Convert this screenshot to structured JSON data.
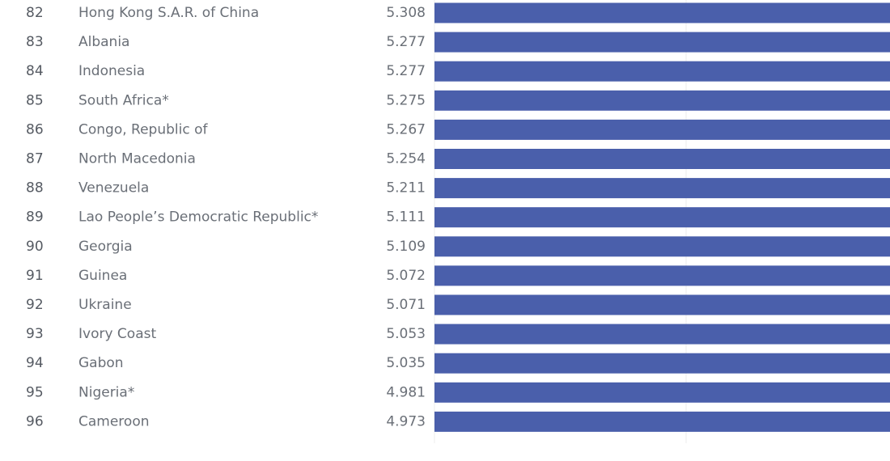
{
  "chart_data": {
    "type": "bar",
    "orientation": "horizontal",
    "bar_color": "#4a5fab",
    "title": "",
    "xlabel": "",
    "ylabel": "",
    "rows": [
      {
        "rank": "82",
        "country": "Hong Kong S.A.R. of China",
        "value": "5.308"
      },
      {
        "rank": "83",
        "country": "Albania",
        "value": "5.277"
      },
      {
        "rank": "84",
        "country": "Indonesia",
        "value": "5.277"
      },
      {
        "rank": "85",
        "country": "South Africa*",
        "value": "5.275"
      },
      {
        "rank": "86",
        "country": "Congo, Republic of",
        "value": "5.267"
      },
      {
        "rank": "87",
        "country": "North Macedonia",
        "value": "5.254"
      },
      {
        "rank": "88",
        "country": "Venezuela",
        "value": "5.211"
      },
      {
        "rank": "89",
        "country": "Lao People’s Democratic Republic*",
        "value": "5.111"
      },
      {
        "rank": "90",
        "country": "Georgia",
        "value": "5.109"
      },
      {
        "rank": "91",
        "country": "Guinea",
        "value": "5.072"
      },
      {
        "rank": "92",
        "country": "Ukraine",
        "value": "5.071"
      },
      {
        "rank": "93",
        "country": "Ivory Coast",
        "value": "5.053"
      },
      {
        "rank": "94",
        "country": "Gabon",
        "value": "5.035"
      },
      {
        "rank": "95",
        "country": "Nigeria*",
        "value": "4.981"
      },
      {
        "rank": "96",
        "country": "Cameroon",
        "value": "4.973"
      }
    ]
  }
}
